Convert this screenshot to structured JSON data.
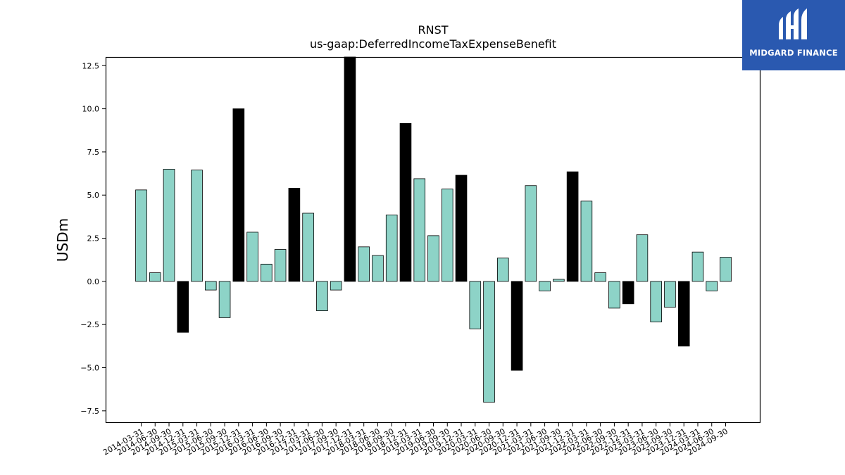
{
  "chart_data": {
    "type": "bar",
    "title": "RNST",
    "subtitle": "us-gaap:DeferredIncomeTaxExpenseBenefit",
    "xlabel": "",
    "ylabel": "USDm",
    "ylim": [
      -8.2,
      13.0
    ],
    "yticks": [
      -7.5,
      -5.0,
      -2.5,
      0.0,
      2.5,
      5.0,
      7.5,
      10.0,
      12.5
    ],
    "ytick_labels": [
      "−7.5",
      "−5.0",
      "−2.5",
      "0.0",
      "2.5",
      "5.0",
      "7.5",
      "10.0",
      "12.5"
    ],
    "grid": false,
    "colors": {
      "quarter": "#8dd3c7",
      "year_end": "#000000",
      "edge": "#000000"
    },
    "categories": [
      "2014-03-31",
      "2014-06-30",
      "2014-09-30",
      "2014-12-31",
      "2015-03-31",
      "2015-06-30",
      "2015-09-30",
      "2015-12-31",
      "2016-03-31",
      "2016-06-30",
      "2016-09-30",
      "2016-12-31",
      "2017-03-31",
      "2017-06-30",
      "2017-09-30",
      "2017-12-31",
      "2018-03-31",
      "2018-06-30",
      "2018-09-30",
      "2018-12-31",
      "2019-03-31",
      "2019-06-30",
      "2019-09-30",
      "2019-12-31",
      "2020-03-31",
      "2020-06-30",
      "2020-09-30",
      "2020-12-31",
      "2021-03-31",
      "2021-06-30",
      "2021-09-30",
      "2021-12-31",
      "2022-03-31",
      "2022-06-30",
      "2022-09-30",
      "2022-12-31",
      "2023-03-31",
      "2023-06-30",
      "2023-09-30",
      "2023-12-31",
      "2024-03-31",
      "2024-06-30",
      "2024-09-30"
    ],
    "values": [
      5.3,
      0.5,
      6.5,
      -2.95,
      6.45,
      -0.5,
      -2.1,
      10.0,
      2.85,
      1.0,
      1.85,
      5.4,
      3.95,
      -1.7,
      -0.5,
      13.2,
      2.0,
      1.5,
      3.85,
      9.15,
      5.95,
      2.65,
      5.35,
      6.15,
      -2.75,
      -7.0,
      1.35,
      -5.15,
      5.55,
      -0.55,
      0.12,
      6.35,
      4.65,
      0.5,
      -1.55,
      -1.3,
      2.7,
      -2.35,
      -1.5,
      -3.75,
      1.7,
      -0.55,
      1.4
    ],
    "highlight": [
      false,
      false,
      false,
      true,
      false,
      false,
      false,
      true,
      false,
      false,
      false,
      true,
      false,
      false,
      false,
      true,
      false,
      false,
      false,
      true,
      false,
      false,
      false,
      true,
      false,
      false,
      false,
      true,
      false,
      false,
      false,
      true,
      false,
      false,
      false,
      true,
      false,
      false,
      false,
      true,
      false,
      false,
      false
    ]
  },
  "logo": {
    "text": "MIDGARD FINANCE",
    "icon": "midgard-logo-icon",
    "background": "#2a59b0"
  }
}
